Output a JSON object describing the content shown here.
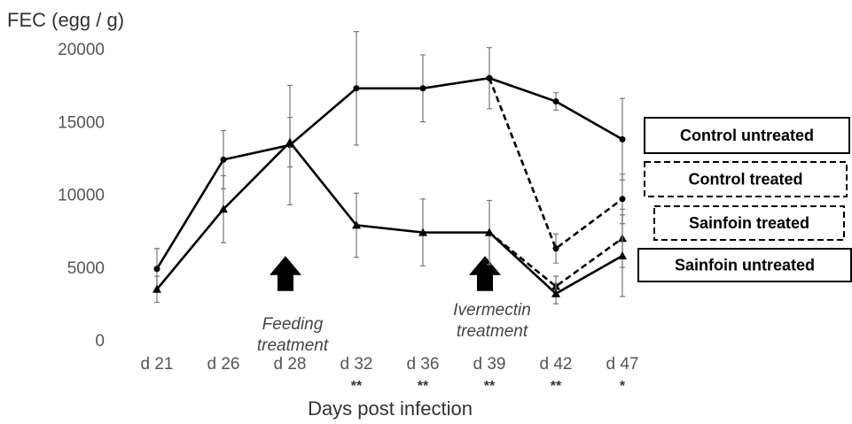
{
  "chart_data": {
    "type": "line",
    "y_label": "FEC (egg / g)",
    "x_label": "Days post infection",
    "categories": [
      "d 21",
      "d 26",
      "d 28",
      "d 32",
      "d 36",
      "d 39",
      "d 42",
      "d 47"
    ],
    "significance": [
      null,
      null,
      null,
      "**",
      "**",
      "**",
      "**",
      "*"
    ],
    "ylim": [
      0,
      20000
    ],
    "yticks": [
      0,
      5000,
      10000,
      15000,
      20000
    ],
    "grid": false,
    "series": [
      {
        "name": "Control untreated",
        "color": "#000000",
        "dashed": false,
        "marker": "circle",
        "values": [
          5000,
          12500,
          13500,
          17400,
          17400,
          18100,
          16500,
          13900
        ],
        "errors": [
          1400,
          2000,
          4100,
          3900,
          2300,
          2100,
          600,
          2800
        ]
      },
      {
        "name": "Control treated",
        "color": "#000000",
        "dashed": true,
        "marker": "circle",
        "values": [
          null,
          null,
          null,
          null,
          null,
          18100,
          6400,
          9800
        ],
        "errors": [
          null,
          null,
          null,
          null,
          null,
          null,
          1000,
          1700
        ]
      },
      {
        "name": "Sainfoin treated",
        "color": "#000000",
        "dashed": true,
        "marker": "triangle",
        "values": [
          null,
          null,
          null,
          null,
          null,
          7500,
          3800,
          7100
        ],
        "errors": [
          null,
          null,
          null,
          null,
          null,
          null,
          700,
          2000
        ]
      },
      {
        "name": "Sainfoin untreated",
        "color": "#000000",
        "dashed": false,
        "marker": "triangle",
        "values": [
          3600,
          9100,
          13700,
          8000,
          7500,
          7500,
          3300,
          5900
        ],
        "errors": [
          900,
          2300,
          1700,
          2200,
          2300,
          2200,
          700,
          2800
        ]
      }
    ],
    "annotations": [
      [
        "Feeding",
        "treatment"
      ],
      [
        "Ivermectin",
        "treatment"
      ]
    ]
  }
}
